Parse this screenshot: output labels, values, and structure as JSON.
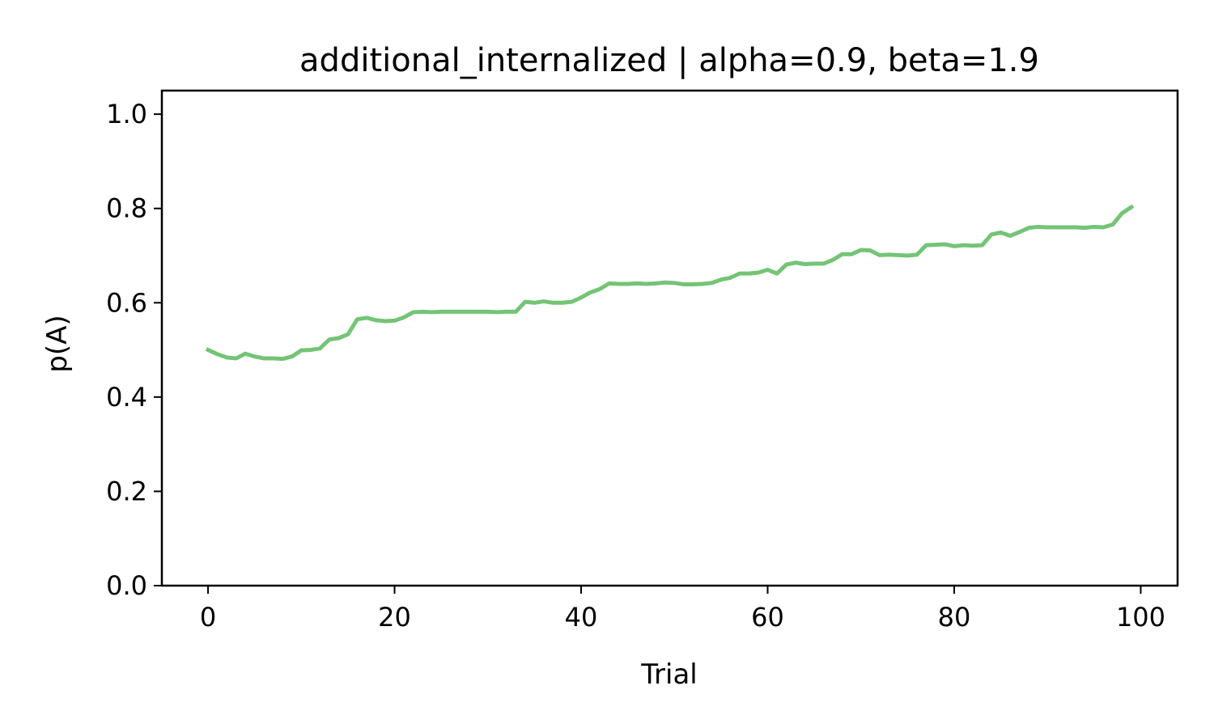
{
  "chart_data": {
    "type": "line",
    "title": "additional_internalized | alpha=0.9, beta=1.9",
    "xlabel": "Trial",
    "ylabel": "p(A)",
    "xlim": [
      -4.95,
      103.95
    ],
    "ylim": [
      0.0,
      1.05
    ],
    "xticks": [
      0,
      20,
      40,
      60,
      80,
      100
    ],
    "xtick_labels": [
      "0",
      "20",
      "40",
      "60",
      "80",
      "100"
    ],
    "yticks": [
      0.0,
      0.2,
      0.4,
      0.6,
      0.8,
      1.0
    ],
    "ytick_labels": [
      "0.0",
      "0.2",
      "0.4",
      "0.6",
      "0.8",
      "1.0"
    ],
    "grid": false,
    "legend": "none",
    "line_color": "#74c476",
    "series": [
      {
        "x": [
          0,
          1,
          2,
          3,
          4,
          5,
          6,
          7,
          8,
          9,
          10,
          11,
          12,
          13,
          14,
          15,
          16,
          17,
          18,
          19,
          20,
          21,
          22,
          23,
          24,
          25,
          26,
          27,
          28,
          29,
          30,
          31,
          32,
          33,
          34,
          35,
          36,
          37,
          38,
          39,
          40,
          41,
          42,
          43,
          44,
          45,
          46,
          47,
          48,
          49,
          50,
          51,
          52,
          53,
          54,
          55,
          56,
          57,
          58,
          59,
          60,
          61,
          62,
          63,
          64,
          65,
          66,
          67,
          68,
          69,
          70,
          71,
          72,
          73,
          74,
          75,
          76,
          77,
          78,
          79,
          80,
          81,
          82,
          83,
          84,
          85,
          86,
          87,
          88,
          89,
          90,
          91,
          92,
          93,
          94,
          95,
          96,
          97,
          98,
          99
        ],
        "values": [
          0.5,
          0.491,
          0.484,
          0.482,
          0.492,
          0.486,
          0.482,
          0.482,
          0.481,
          0.486,
          0.499,
          0.5,
          0.503,
          0.522,
          0.525,
          0.533,
          0.565,
          0.568,
          0.563,
          0.561,
          0.562,
          0.569,
          0.58,
          0.581,
          0.58,
          0.581,
          0.581,
          0.581,
          0.581,
          0.581,
          0.581,
          0.58,
          0.581,
          0.581,
          0.602,
          0.6,
          0.603,
          0.6,
          0.6,
          0.602,
          0.611,
          0.622,
          0.629,
          0.641,
          0.64,
          0.64,
          0.641,
          0.64,
          0.641,
          0.643,
          0.642,
          0.639,
          0.639,
          0.64,
          0.642,
          0.649,
          0.653,
          0.662,
          0.662,
          0.664,
          0.67,
          0.662,
          0.681,
          0.685,
          0.682,
          0.683,
          0.683,
          0.691,
          0.703,
          0.703,
          0.712,
          0.711,
          0.701,
          0.702,
          0.701,
          0.7,
          0.702,
          0.722,
          0.723,
          0.724,
          0.72,
          0.722,
          0.721,
          0.722,
          0.745,
          0.749,
          0.742,
          0.75,
          0.759,
          0.761,
          0.76,
          0.76,
          0.76,
          0.76,
          0.759,
          0.761,
          0.76,
          0.766,
          0.79,
          0.803
        ]
      }
    ]
  }
}
